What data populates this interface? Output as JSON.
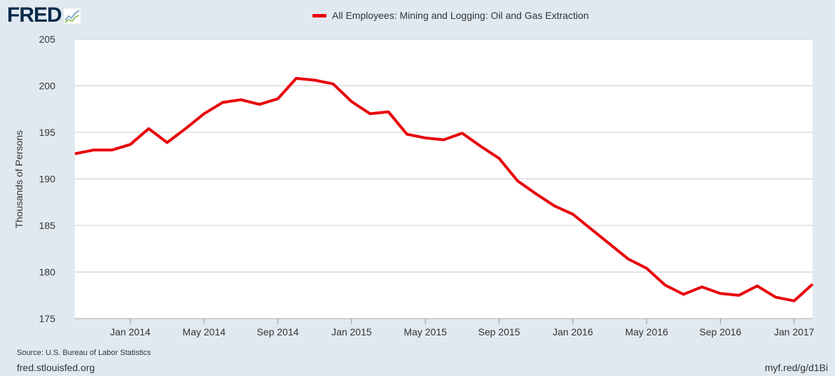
{
  "logo": {
    "text": "FRED",
    "icon": "fred-chart-logo-icon"
  },
  "footer": {
    "source": "Source: U.S. Bureau of Labor Statistics",
    "site": "fred.stlouisfed.org",
    "short_link": "myf.red/g/d1Bi"
  },
  "colors": {
    "background": "#e1e9f0",
    "plot": "#ffffff",
    "series": "#e8000b",
    "grid": "#cccccc"
  },
  "chart_data": {
    "type": "line",
    "ylabel": "Thousands of Persons",
    "ylim": [
      175,
      205
    ],
    "yticks": [
      175,
      180,
      185,
      190,
      195,
      200,
      205
    ],
    "xlim": [
      "2013-10",
      "2017-02"
    ],
    "xticks": [
      "Jan 2014",
      "May 2014",
      "Sep 2014",
      "Jan 2015",
      "May 2015",
      "Sep 2015",
      "Jan 2016",
      "May 2016",
      "Sep 2016",
      "Jan 2017"
    ],
    "grid": true,
    "legend_position": "top-center",
    "series": [
      {
        "name": "All Employees: Mining and Logging: Oil and Gas Extraction",
        "color": "#e8000b",
        "x": [
          "2013-10",
          "2013-11",
          "2013-12",
          "2014-01",
          "2014-02",
          "2014-03",
          "2014-04",
          "2014-05",
          "2014-06",
          "2014-07",
          "2014-08",
          "2014-09",
          "2014-10",
          "2014-11",
          "2014-12",
          "2015-01",
          "2015-02",
          "2015-03",
          "2015-04",
          "2015-05",
          "2015-06",
          "2015-07",
          "2015-08",
          "2015-09",
          "2015-10",
          "2015-11",
          "2015-12",
          "2016-01",
          "2016-02",
          "2016-03",
          "2016-04",
          "2016-05",
          "2016-06",
          "2016-07",
          "2016-08",
          "2016-09",
          "2016-10",
          "2016-11",
          "2016-12",
          "2017-01",
          "2017-02"
        ],
        "values": [
          192.7,
          193.1,
          193.1,
          193.7,
          195.4,
          193.9,
          195.4,
          197.0,
          198.2,
          198.5,
          198.0,
          198.6,
          200.8,
          200.6,
          200.2,
          198.3,
          197.0,
          197.2,
          194.8,
          194.4,
          194.2,
          194.9,
          193.5,
          192.2,
          189.8,
          188.4,
          187.1,
          186.2,
          184.6,
          183.0,
          181.4,
          180.4,
          178.6,
          177.6,
          178.4,
          177.7,
          177.5,
          178.5,
          177.3,
          176.9,
          178.7
        ]
      }
    ]
  }
}
